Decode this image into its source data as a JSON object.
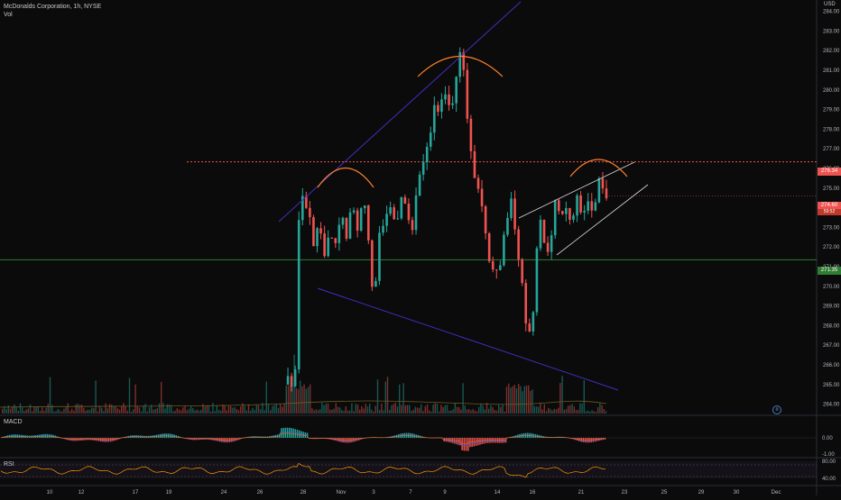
{
  "header": {
    "symbol_line": "McDonalds Corporation, 1h, NYSE",
    "volume_label": "Vol",
    "currency": "USD"
  },
  "panes": {
    "macd_label": "MACD",
    "rsi_label": "RSI"
  },
  "colors": {
    "background": "#0b0b0b",
    "up": "#26a69a",
    "down": "#ef5350",
    "trendline": "#3f2fbf",
    "arc": "#ff7f2a",
    "resistance": "#ef5350",
    "support": "#2e7d32",
    "rsi": "#ff9800",
    "wedge": "#d9d9d9"
  },
  "chart_data": {
    "type": "candlestick",
    "x_tick_labels": [
      "10",
      "12",
      "17",
      "19",
      "24",
      "26",
      "28",
      "Nov",
      "3",
      "7",
      "9",
      "14",
      "16",
      "21",
      "23",
      "25",
      "29",
      "30",
      "Dec"
    ],
    "y_tick_labels": [
      "284.00",
      "283.00",
      "282.00",
      "281.00",
      "280.00",
      "279.00",
      "278.00",
      "277.00",
      "276.00",
      "275.00",
      "274.00",
      "273.00",
      "272.00",
      "271.00",
      "270.00",
      "269.00",
      "268.00",
      "267.00",
      "266.00",
      "265.00",
      "264.00"
    ],
    "ylim": [
      263.8,
      284.3
    ],
    "price_labels": {
      "resistance": "276.34",
      "last_price": "274.60",
      "last_sub": "59:52",
      "support": "271.35"
    },
    "levels": {
      "resistance": 276.34,
      "support": 271.35,
      "last": 274.6
    },
    "macd_ticks": [
      "0.00",
      "-1.00"
    ],
    "rsi_ticks": [
      "80.00",
      "40.00"
    ],
    "price_path": [
      [
        0,
        265.0
      ],
      [
        0.6,
        264.6
      ],
      [
        1.0,
        265.4
      ],
      [
        1.6,
        266.0
      ],
      [
        2.0,
        265.1
      ],
      [
        2.8,
        265.7
      ],
      [
        3.4,
        266.3
      ],
      [
        4.0,
        273.4
      ],
      [
        5.0,
        274.6
      ],
      [
        6.5,
        274.0
      ],
      [
        8.0,
        272.0
      ],
      [
        9.5,
        273.5
      ],
      [
        11.0,
        271.4
      ],
      [
        12.5,
        272.9
      ],
      [
        14.0,
        272.2
      ],
      [
        15.5,
        273.8
      ],
      [
        17.0,
        272.6
      ],
      [
        18.5,
        274.3
      ],
      [
        20.0,
        273.0
      ],
      [
        21.5,
        274.8
      ],
      [
        23.0,
        272.1
      ],
      [
        24.5,
        269.2
      ],
      [
        26.0,
        272.5
      ],
      [
        27.5,
        273.6
      ],
      [
        29.0,
        274.0
      ],
      [
        30.5,
        273.0
      ],
      [
        32.0,
        274.7
      ],
      [
        33.5,
        273.6
      ],
      [
        35.0,
        273.0
      ],
      [
        36.5,
        275.4
      ],
      [
        38.0,
        276.5
      ],
      [
        39.5,
        277.2
      ],
      [
        41.0,
        279.3
      ],
      [
        42.5,
        279.0
      ],
      [
        44.0,
        279.9
      ],
      [
        45.5,
        278.6
      ],
      [
        47.0,
        280.8
      ],
      [
        48.5,
        282.4
      ],
      [
        50.0,
        278.4
      ],
      [
        51.5,
        276.0
      ],
      [
        53.0,
        275.1
      ],
      [
        54.5,
        273.6
      ],
      [
        56.0,
        271.5
      ],
      [
        57.5,
        270.6
      ],
      [
        59.0,
        271.0
      ],
      [
        60.5,
        273.1
      ],
      [
        62.0,
        274.5
      ],
      [
        63.5,
        272.1
      ],
      [
        65.0,
        270.0
      ],
      [
        66.5,
        267.2
      ],
      [
        68.0,
        268.8
      ],
      [
        69.5,
        273.7
      ],
      [
        71.0,
        272.4
      ],
      [
        72.5,
        271.6
      ],
      [
        74.0,
        274.2
      ],
      [
        75.5,
        273.3
      ],
      [
        77.0,
        273.8
      ],
      [
        78.5,
        273.0
      ],
      [
        80.0,
        274.6
      ],
      [
        81.5,
        273.7
      ],
      [
        83.0,
        274.4
      ],
      [
        84.5,
        273.8
      ],
      [
        86.0,
        275.4
      ],
      [
        87.5,
        274.6
      ]
    ]
  }
}
